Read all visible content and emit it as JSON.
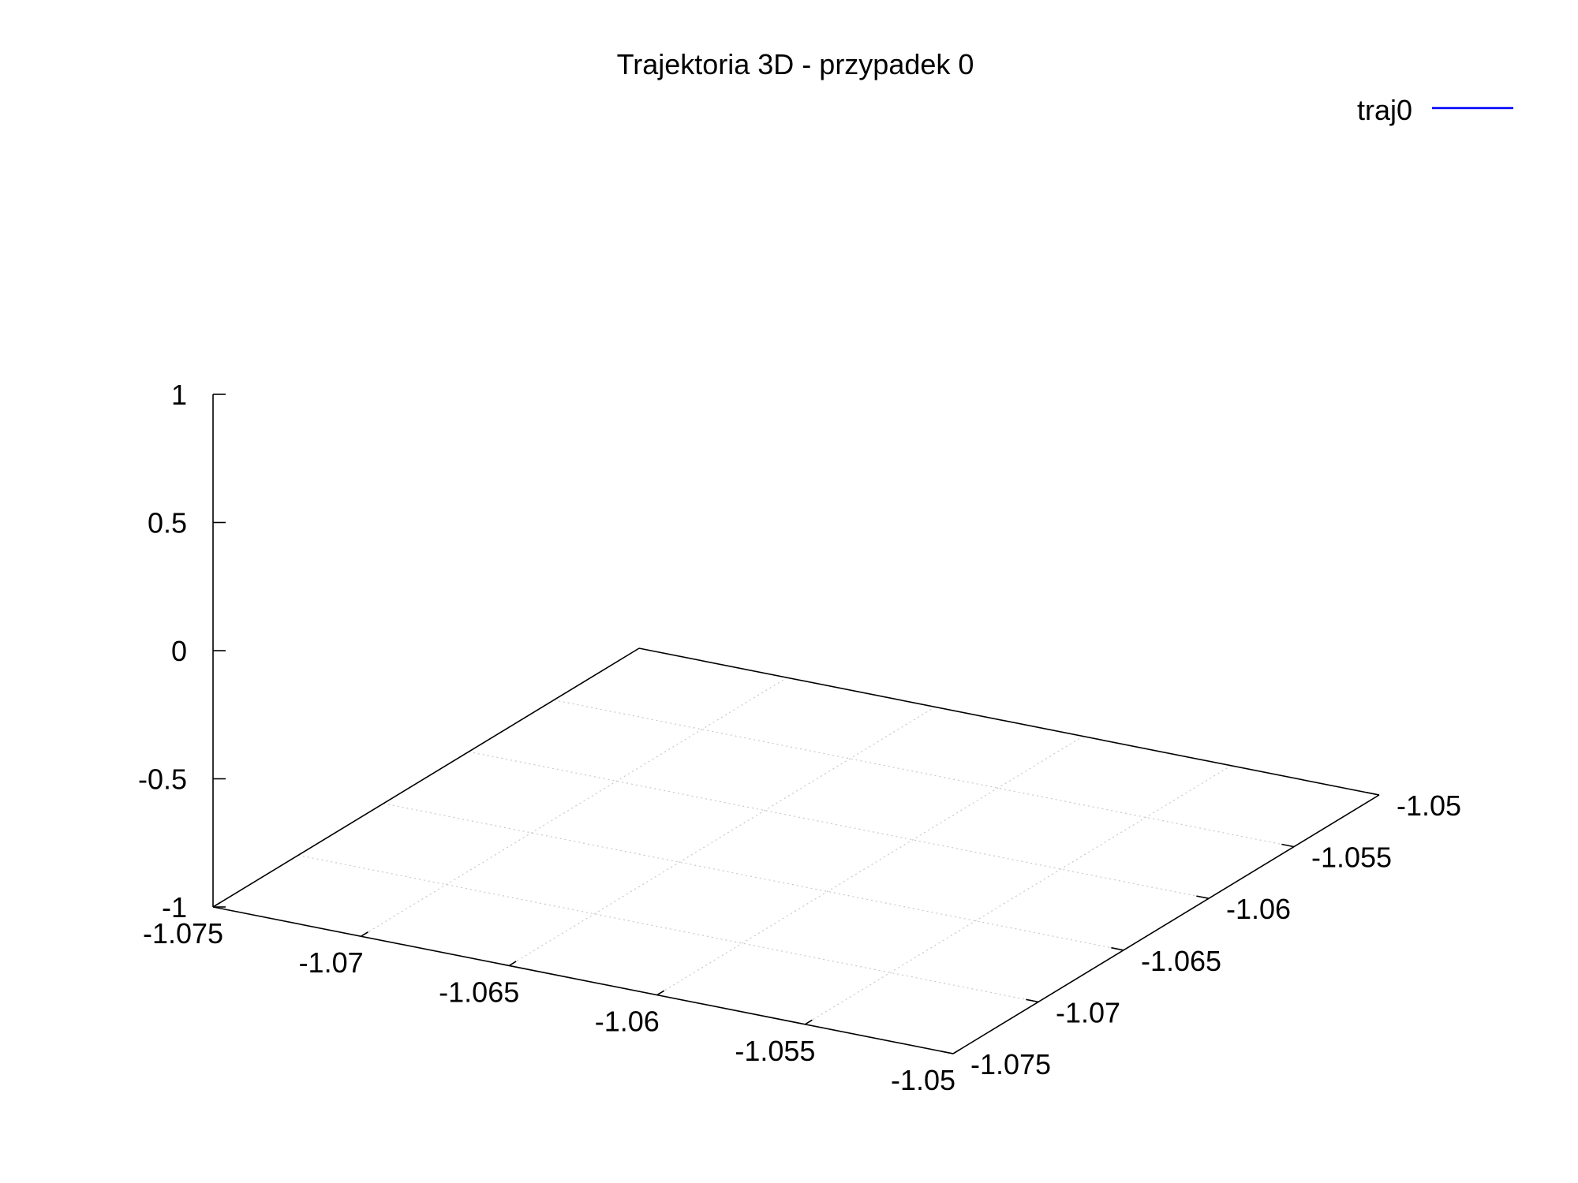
{
  "chart_data": {
    "type": "line",
    "title": "Trajektoria 3D - przypadek 0",
    "xlabel": "",
    "ylabel": "",
    "zlabel": "",
    "xlim": [
      -1.075,
      -1.05
    ],
    "ylim": [
      -1.075,
      -1.05
    ],
    "zlim": [
      -1,
      1
    ],
    "x_ticks": [
      "-1.075",
      "-1.07",
      "-1.065",
      "-1.06",
      "-1.055",
      "-1.05"
    ],
    "y_ticks": [
      "-1.075",
      "-1.07",
      "-1.065",
      "-1.06",
      "-1.055",
      "-1.05"
    ],
    "z_ticks": [
      "-1",
      "-0.5",
      "0",
      "0.5",
      "1"
    ],
    "grid": true,
    "legend_position": "top-right",
    "series": [
      {
        "name": "traj0",
        "color": "#0000ff",
        "points": []
      }
    ]
  }
}
